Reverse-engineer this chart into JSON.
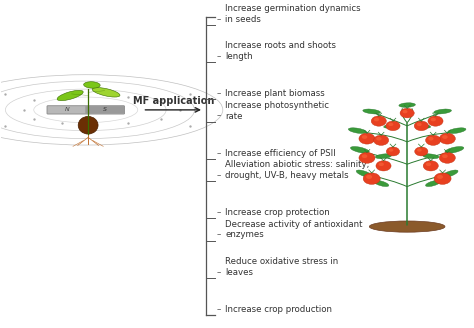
{
  "background_color": "#ffffff",
  "arrow_label": "MF application",
  "bullet_items": [
    "Increase germination dynamics\nin seeds",
    "Increase roots and shoots\nlength",
    "Increase plant biomass",
    "Increase photosynthetic\nrate",
    "Increase efficiency of PSII",
    "Alleviation abiotic stress: salinity,\ndrought, UV-B, heavy metals",
    "Increase crop protection",
    "Decrease activity of antioxidant\nenzymes",
    "Reduce oxidative stress in\nleaves",
    "Increase crop production"
  ],
  "text_color": "#333333",
  "bracket_color": "#555555",
  "dash_color": "#555555",
  "arrow_color": "#222222",
  "font_size": 6.2,
  "label_font_size": 7.0,
  "mf_color": "#cccccc",
  "seedling_green": "#7bc618",
  "seedling_dark_green": "#3a6e00",
  "seed_brown": "#6B2F04",
  "root_color": "#c07030",
  "tomato_red": "#e84020",
  "tomato_dark": "#c03010",
  "plant_green": "#2a7a30",
  "soil_brown": "#8B5A2B"
}
